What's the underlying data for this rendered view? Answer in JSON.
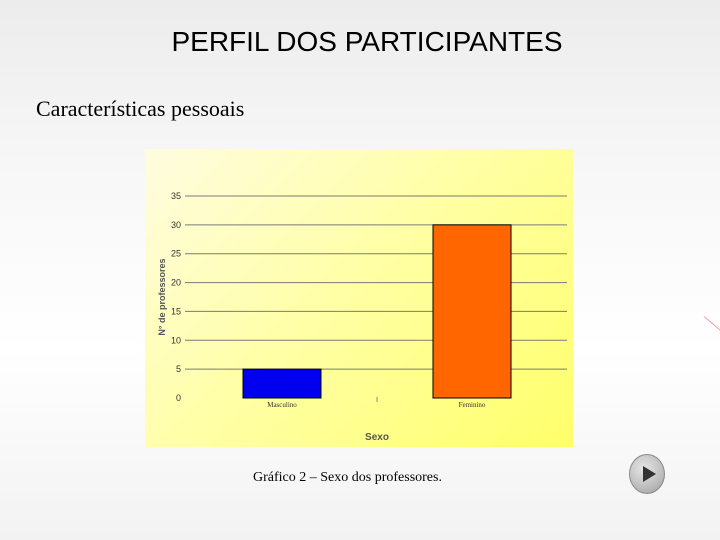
{
  "slide": {
    "title": "PERFIL DOS PARTICIPANTES",
    "subtitle": "Características pessoais",
    "caption_prefix": "Gráfico 2 –",
    "caption_text": " Sexo dos professores."
  },
  "colors": {
    "masculino": "#0000ee",
    "feminino": "#ff6600",
    "gridline": "#7a7a7a"
  },
  "chart_data": {
    "type": "bar",
    "categories": [
      "Masculino",
      "Feminino"
    ],
    "values": [
      5,
      30
    ],
    "ylabel": "N° de professores",
    "xlabel": "Sexo",
    "ylim": [
      0,
      35
    ],
    "yticks": [
      "0",
      "5",
      "10",
      "15",
      "20",
      "25",
      "30",
      "35"
    ],
    "grid": true,
    "legend": "none"
  }
}
